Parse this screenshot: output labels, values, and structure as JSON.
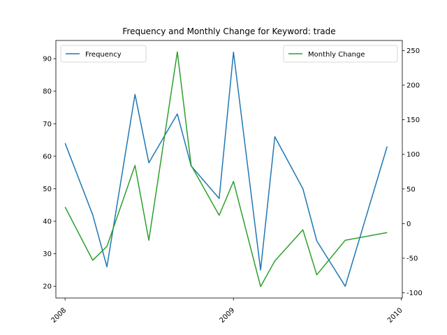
{
  "chart_data": {
    "type": "line",
    "title": "Frequency and Monthly Change for Keyword: trade",
    "x": [
      "2008-01",
      "2008-03",
      "2008-04",
      "2008-06",
      "2008-07",
      "2008-09",
      "2008-10",
      "2008-12",
      "2009-01",
      "2009-03",
      "2009-04",
      "2009-06",
      "2009-07",
      "2009-09",
      "2009-10",
      "2009-12"
    ],
    "x_ticks": [
      "2008",
      "2009",
      "2010"
    ],
    "xlim": [
      "2007-12-12",
      "2010-01-03"
    ],
    "left_axis": {
      "label": "",
      "ylim": [
        16.4,
        95.6
      ],
      "ticks": [
        20,
        30,
        40,
        50,
        60,
        70,
        80,
        90
      ]
    },
    "right_axis": {
      "label": "",
      "ylim": [
        -107.5,
        264.5
      ],
      "ticks": [
        -100,
        -50,
        0,
        50,
        100,
        150,
        200,
        250
      ]
    },
    "series": [
      {
        "name": "Frequency",
        "axis": "left",
        "color": "#1f77b4",
        "values": [
          64,
          42,
          26,
          79,
          58,
          73,
          57,
          47,
          92,
          25,
          66,
          50,
          34,
          20,
          null,
          63
        ]
      },
      {
        "name": "Monthly Change",
        "axis": "right",
        "color": "#2ca02c",
        "values": [
          24,
          -53,
          -33,
          84,
          -24,
          248,
          84,
          12,
          61,
          -91,
          -54,
          -9,
          -74,
          -24,
          null,
          -13
        ]
      }
    ],
    "legends": [
      {
        "placement": "upper-left",
        "entries": [
          "Frequency"
        ]
      },
      {
        "placement": "upper-right",
        "entries": [
          "Monthly Change"
        ]
      }
    ],
    "grid": false
  }
}
